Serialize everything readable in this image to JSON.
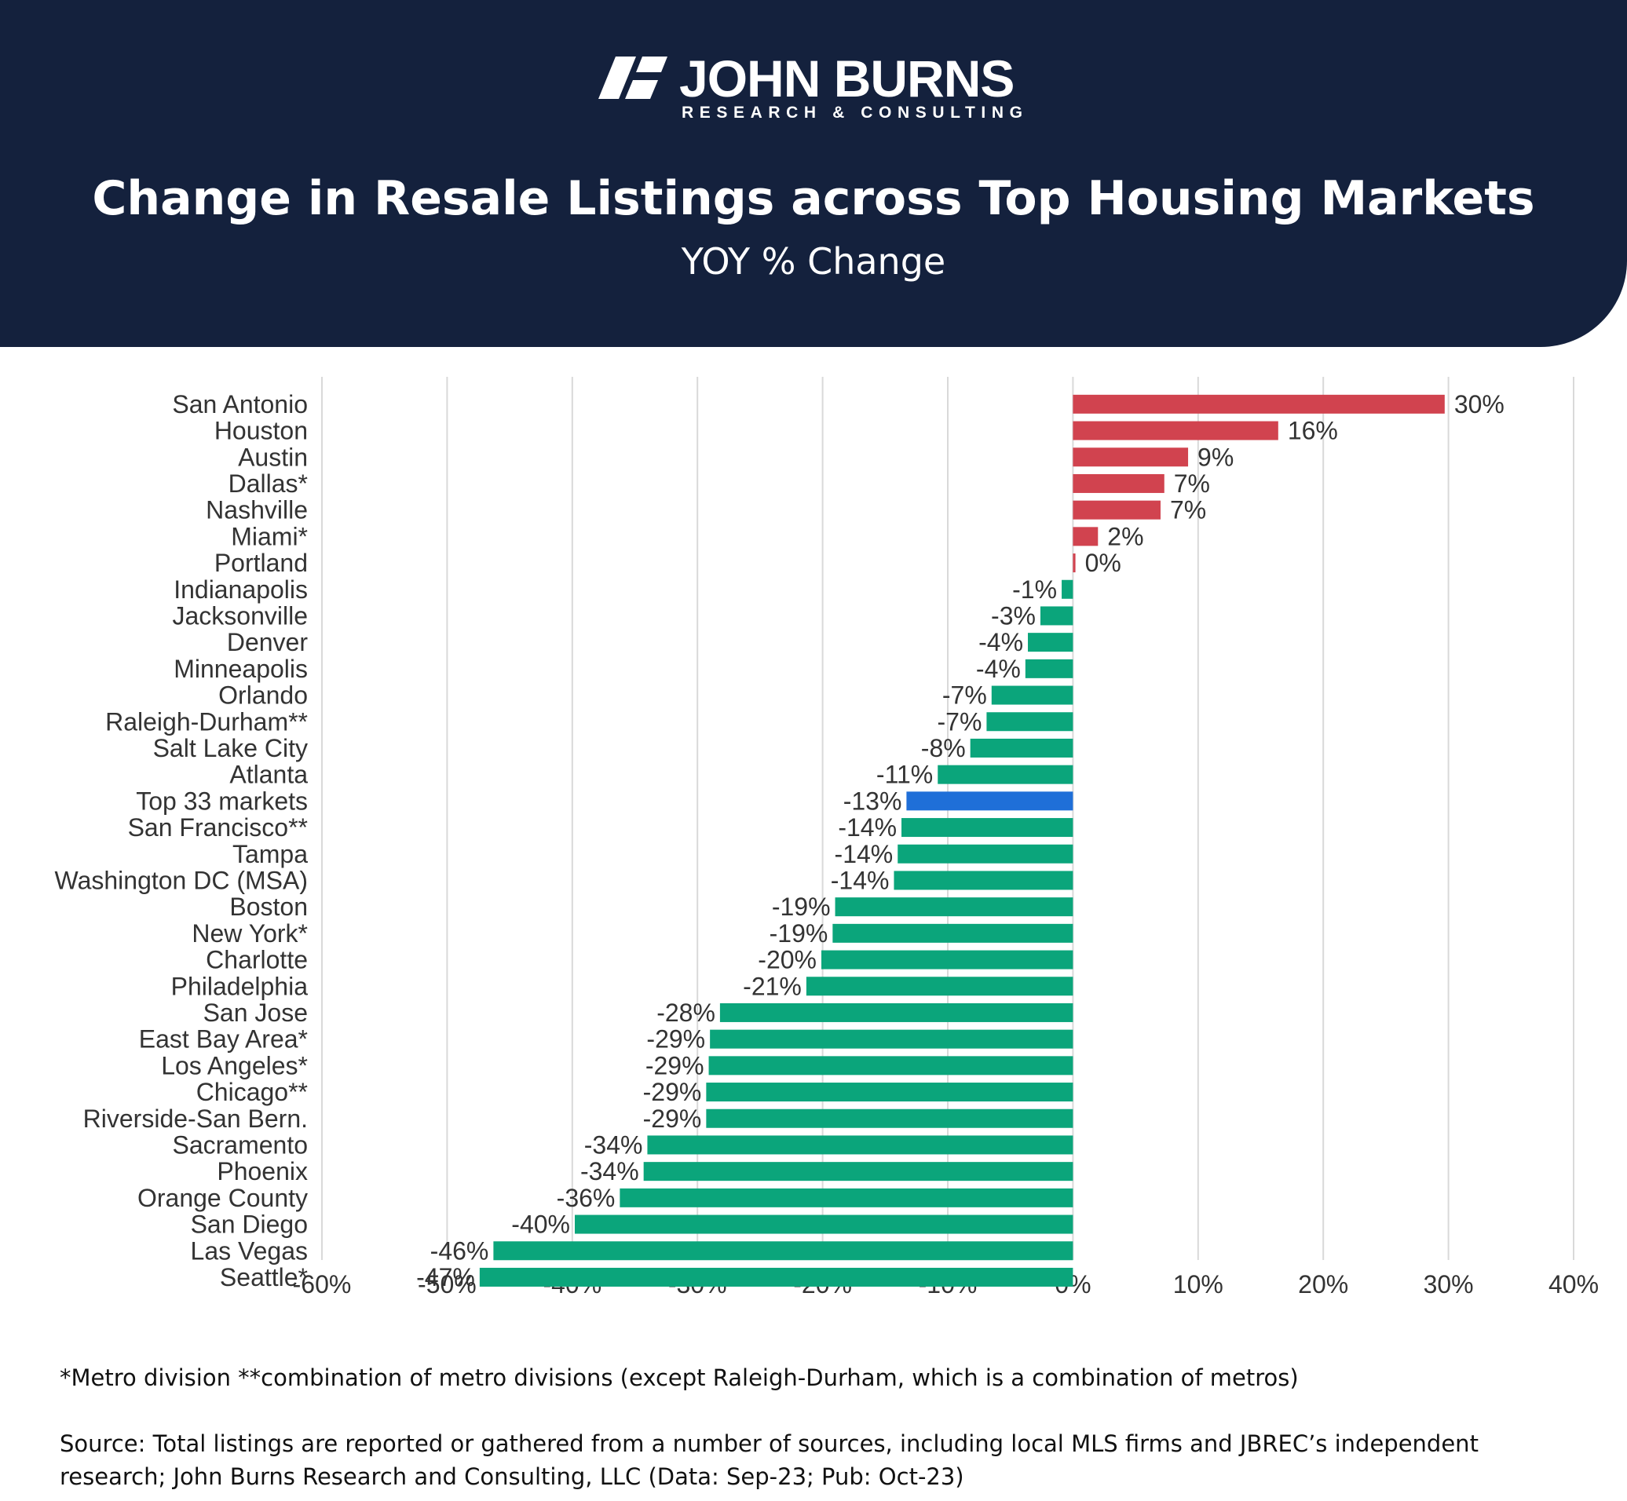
{
  "brand": {
    "name": "JOHN BURNS",
    "tagline": "RESEARCH & CONSULTING"
  },
  "chart_data": {
    "type": "bar",
    "orientation": "horizontal",
    "title": "Change in Resale Listings across Top Housing Markets",
    "subtitle": "YOY % Change",
    "categories": [
      "San Antonio",
      "Houston",
      "Austin",
      "Dallas*",
      "Nashville",
      "Miami*",
      "Portland",
      "Indianapolis",
      "Jacksonville",
      "Denver",
      "Minneapolis",
      "Orlando",
      "Raleigh-Durham**",
      "Salt Lake City",
      "Atlanta",
      "Top 33 markets",
      "San Francisco**",
      "Tampa",
      "Washington DC (MSA)",
      "Boston",
      "New York*",
      "Charlotte",
      "Philadelphia",
      "San Jose",
      "East Bay Area*",
      "Los Angeles*",
      "Chicago**",
      "Riverside-San Bern.",
      "Sacramento",
      "Phoenix",
      "Orange County",
      "San Diego",
      "Las Vegas",
      "Seattle*"
    ],
    "values": [
      29.7,
      16.4,
      9.2,
      7.3,
      7.0,
      2.0,
      0.2,
      -0.9,
      -2.6,
      -3.6,
      -3.8,
      -6.5,
      -6.9,
      -8.2,
      -10.8,
      -13.3,
      -13.7,
      -14.0,
      -14.3,
      -19.0,
      -19.2,
      -20.1,
      -21.3,
      -28.2,
      -29.0,
      -29.1,
      -29.3,
      -29.3,
      -34.0,
      -34.3,
      -36.2,
      -39.8,
      -46.3,
      -47.4
    ],
    "data_labels": [
      "30%",
      "16%",
      "9%",
      "7%",
      "7%",
      "2%",
      "0%",
      "-1%",
      "-3%",
      "-4%",
      "-4%",
      "-7%",
      "-7%",
      "-8%",
      "-11%",
      "-13%",
      "-14%",
      "-14%",
      "-14%",
      "-19%",
      "-19%",
      "-20%",
      "-21%",
      "-28%",
      "-29%",
      "-29%",
      "-29%",
      "-29%",
      "-34%",
      "-34%",
      "-36%",
      "-40%",
      "-46%",
      "-47%"
    ],
    "highlight_category": "Top 33 markets",
    "xlim": [
      -60,
      40
    ],
    "x_ticks": [
      -60,
      -50,
      -40,
      -30,
      -20,
      -10,
      0,
      10,
      20,
      30,
      40
    ],
    "x_tick_labels": [
      "-60%",
      "-50%",
      "-40%",
      "-30%",
      "-20%",
      "-10%",
      "0%",
      "10%",
      "20%",
      "30%",
      "40%"
    ],
    "grid": "vertical",
    "legend": "none",
    "colors": {
      "positive": "#d1434f",
      "negative": "#0ba57b",
      "highlight": "#1f6fd8",
      "grid": "#d9d9d9",
      "text": "#333333"
    }
  },
  "notes": {
    "footnote": "*Metro division **combination of metro divisions (except Raleigh-Durham, which is a combination of metros)",
    "source": "Source: Total listings are reported or gathered from a number of sources, including local MLS firms and JBREC’s independent research; John Burns Research and Consulting, LLC (Data: Sep-23; Pub: Oct-23)"
  }
}
